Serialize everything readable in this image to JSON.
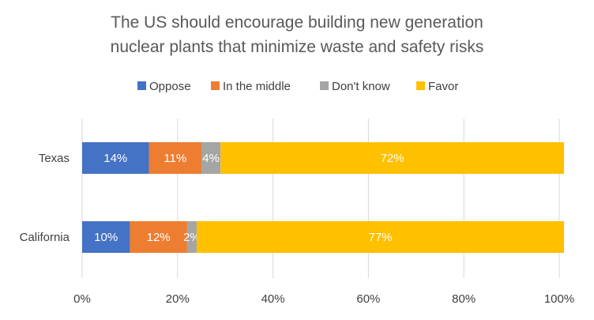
{
  "chart_data": {
    "type": "bar",
    "orientation": "horizontal",
    "stacked": true,
    "title_lines": [
      "The US should encourage building new generation",
      "nuclear plants that minimize waste and safety risks"
    ],
    "categories": [
      "Texas",
      "California"
    ],
    "series": [
      {
        "name": "Oppose",
        "values": [
          14,
          10
        ],
        "labels": [
          "14%",
          "10%"
        ],
        "color": "#4472c4"
      },
      {
        "name": "In the middle",
        "values": [
          11,
          12
        ],
        "labels": [
          "11%",
          "12%"
        ],
        "color": "#ed7d31"
      },
      {
        "name": "Don't know",
        "values": [
          4,
          2
        ],
        "labels": [
          "4%",
          "2%"
        ],
        "color": "#a5a5a5"
      },
      {
        "name": "Favor",
        "values": [
          72,
          77
        ],
        "labels": [
          "72%",
          "77%"
        ],
        "color": "#ffc000"
      }
    ],
    "x_ticks": [
      "0%",
      "20%",
      "40%",
      "60%",
      "80%",
      "100%"
    ],
    "xlim": [
      0,
      100
    ],
    "grid": true,
    "legend_position": "top"
  }
}
